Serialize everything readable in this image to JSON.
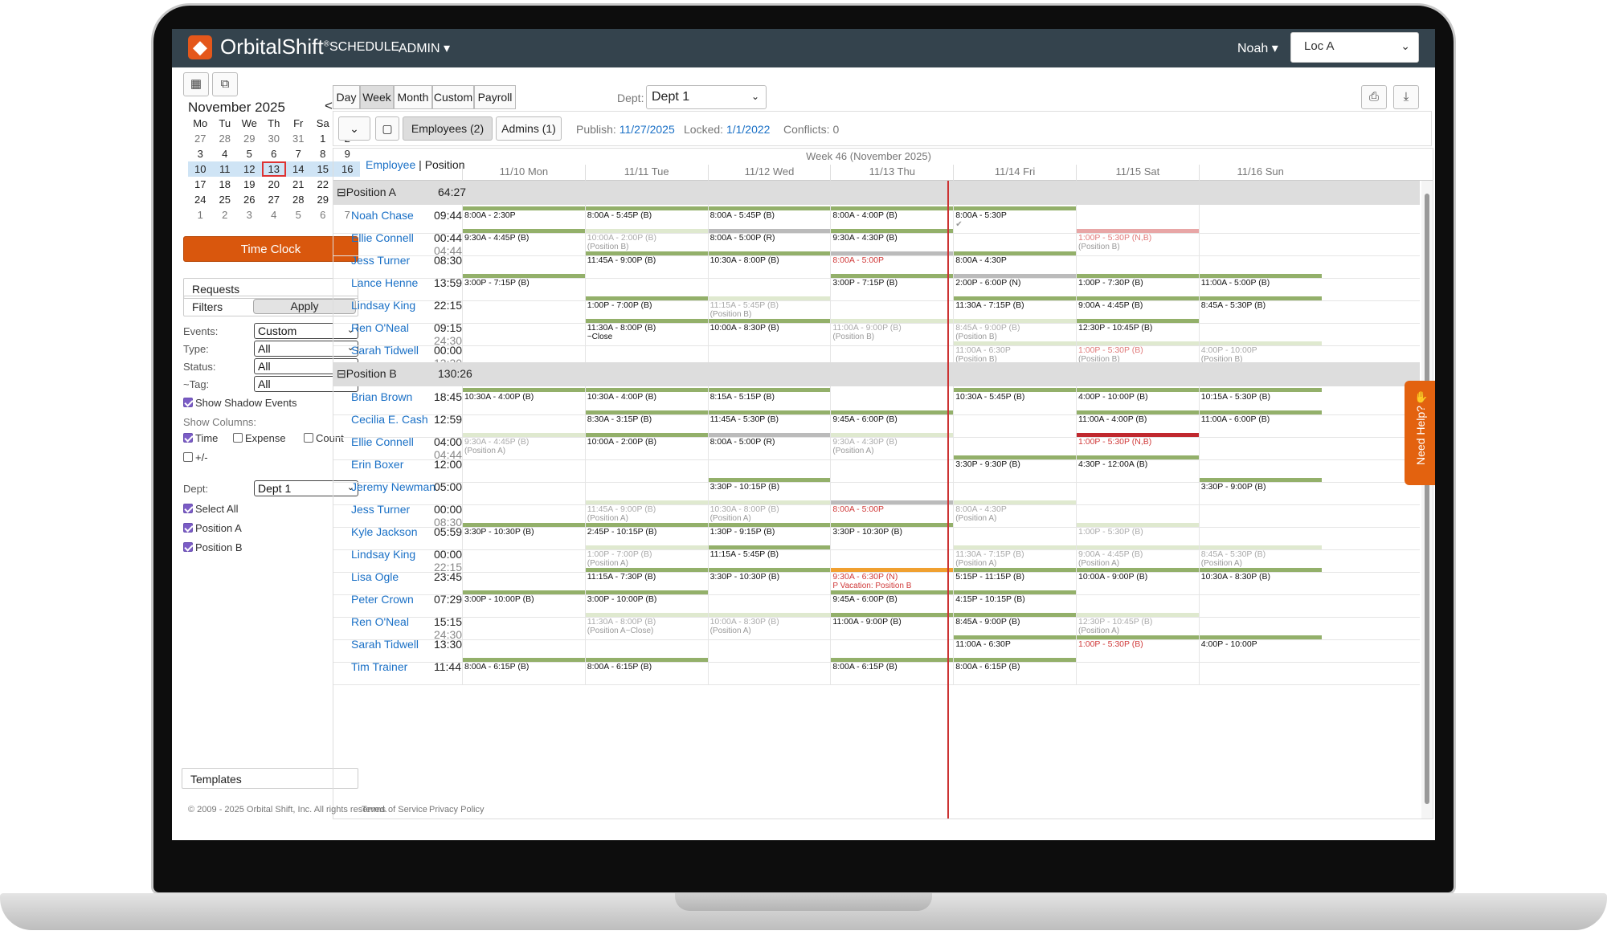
{
  "app": {
    "brand": "OrbitalShift",
    "brand_mark": "®"
  },
  "nav": {
    "schedule": "SCHEDULE",
    "admin": "ADMIN ▾",
    "user": "Noah ▾",
    "location": "Loc A"
  },
  "calendar": {
    "title": "November 2025",
    "prev": "<",
    "next": ">",
    "headers": [
      "Mo",
      "Tu",
      "We",
      "Th",
      "Fr",
      "Sa",
      "Su"
    ],
    "weeks": [
      [
        "27",
        "28",
        "29",
        "30",
        "31",
        "1",
        "2"
      ],
      [
        "3",
        "4",
        "5",
        "6",
        "7",
        "8",
        "9"
      ],
      [
        "10",
        "11",
        "12",
        "13",
        "14",
        "15",
        "16"
      ],
      [
        "17",
        "18",
        "19",
        "20",
        "21",
        "22",
        "23"
      ],
      [
        "24",
        "25",
        "26",
        "27",
        "28",
        "29",
        "30"
      ],
      [
        "1",
        "2",
        "3",
        "4",
        "5",
        "6",
        "7"
      ]
    ],
    "today": "13"
  },
  "sidebar": {
    "time_clock": "Time Clock",
    "requests": "Requests",
    "filters": "Filters",
    "apply": "Apply",
    "events_label": "Events:",
    "events_value": "Custom",
    "type_label": "Type:",
    "type_value": "All",
    "status_label": "Status:",
    "status_value": "All",
    "tag_label": "~Tag:",
    "tag_value": "All",
    "show_shadow": "Show Shadow Events",
    "show_columns": "Show Columns:",
    "col_time": "Time",
    "col_expense": "Expense",
    "col_count": "Count",
    "col_plusminus": "+/-",
    "dept_label": "Dept:",
    "dept_value": "Dept 1",
    "select_all": "Select All",
    "position_a": "Position A",
    "position_b": "Position B",
    "templates": "Templates"
  },
  "toolbar": {
    "views": [
      "Day",
      "Week",
      "Month",
      "Custom",
      "Payroll"
    ],
    "active_view": "Week",
    "dept_label": "Dept:",
    "dept_value": "Dept 1",
    "employees_pill": "Employees (2)",
    "admins_pill": "Admins (1)",
    "publish_label": "Publish:",
    "publish_value": "11/27/2025",
    "locked_label": "Locked:",
    "locked_value": "1/1/2022",
    "conflicts": "Conflicts: 0"
  },
  "schedule": {
    "week_title": "Week 46 (November 2025)",
    "employee_link": "Employee",
    "separator": "|",
    "position_link": "Position",
    "days": [
      "11/10 Mon",
      "11/11 Tue",
      "11/12 Wed",
      "11/13 Thu",
      "11/14 Fri",
      "11/15 Sat",
      "11/16 Sun"
    ],
    "groups": [
      {
        "name": "⊟Position A",
        "hours": "64:27",
        "rows": [
          {
            "name": "Noah Chase",
            "h1": "09:44",
            "h2": "",
            "cells": [
              {
                "t": "8:00A - 2:30P",
                "c": "#93b06a"
              },
              {
                "t": "8:00A - 5:45P (B)",
                "c": "#93b06a"
              },
              {
                "t": "8:00A - 5:45P (B)",
                "c": "#93b06a"
              },
              {
                "t": "8:00A - 4:00P (B)",
                "c": "#93b06a"
              },
              {
                "t": "8:00A - 5:30P",
                "sub": "✔",
                "c": "#93b06a"
              },
              null,
              null
            ]
          },
          {
            "name": "Ellie Connell",
            "h1": "00:44",
            "h2": "04:44",
            "cells": [
              {
                "t": "9:30A - 4:45P (B)",
                "c": "#93b06a"
              },
              {
                "t": "10:00A - 2:00P (B)",
                "sub": "(Position B)",
                "c": "#dfe9cf",
                "k": "faded"
              },
              {
                "t": "8:00A - 5:00P (R)",
                "c": "#bbb"
              },
              {
                "t": "9:30A - 4:30P (B)",
                "c": "#93b06a"
              },
              null,
              {
                "t": "1:00P - 5:30P (N,B)",
                "sub": "(Position B)",
                "c": "#e8a6a6",
                "k": "pink"
              },
              null
            ]
          },
          {
            "name": "Jess Turner",
            "h1": "08:30",
            "h2": "",
            "cells": [
              null,
              {
                "t": "11:45A - 9:00P (B)",
                "c": "#93b06a"
              },
              {
                "t": "10:30A - 8:00P (B)",
                "c": "#93b06a"
              },
              {
                "t": "8:00A - 5:00P",
                "c": "#bbb",
                "k": "red"
              },
              {
                "t": "8:00A - 4:30P",
                "c": "#93b06a"
              },
              null,
              null
            ]
          },
          {
            "name": "Lance Henne",
            "h1": "13:59",
            "h2": "",
            "cells": [
              {
                "t": "3:00P - 7:15P (B)",
                "c": "#93b06a"
              },
              null,
              null,
              {
                "t": "3:00P - 7:15P (B)",
                "c": "#93b06a"
              },
              {
                "t": "2:00P - 6:00P (N)",
                "c": "#bbb"
              },
              {
                "t": "1:00P - 7:30P (B)",
                "c": "#93b06a"
              },
              {
                "t": "11:00A - 5:00P (B)",
                "c": "#93b06a"
              }
            ]
          },
          {
            "name": "Lindsay King",
            "h1": "22:15",
            "h2": "",
            "cells": [
              null,
              {
                "t": "1:00P - 7:00P (B)",
                "c": "#93b06a"
              },
              {
                "t": "11:15A - 5:45P (B)",
                "sub": "(Position B)",
                "c": "#dfe9cf",
                "k": "faded"
              },
              null,
              {
                "t": "11:30A - 7:15P (B)",
                "c": "#93b06a"
              },
              {
                "t": "9:00A - 4:45P (B)",
                "c": "#93b06a"
              },
              {
                "t": "8:45A - 5:30P (B)",
                "c": "#93b06a"
              }
            ]
          },
          {
            "name": "Ren O'Neal",
            "h1": "09:15",
            "h2": "24:30",
            "cells": [
              null,
              {
                "t": "11:30A - 8:00P (B)",
                "sub2": "~Close",
                "c": "#93b06a"
              },
              {
                "t": "10:00A - 8:30P (B)",
                "c": "#93b06a"
              },
              {
                "t": "11:00A - 9:00P (B)",
                "sub": "(Position B)",
                "c": "#dfe9cf",
                "k": "faded"
              },
              {
                "t": "8:45A - 9:00P (B)",
                "sub": "(Position B)",
                "c": "#dfe9cf",
                "k": "faded"
              },
              {
                "t": "12:30P - 10:45P (B)",
                "c": "#93b06a"
              },
              null
            ]
          },
          {
            "name": "Sarah Tidwell",
            "h1": "00:00",
            "h2": "13:30",
            "cells": [
              null,
              null,
              null,
              null,
              {
                "t": "11:00A - 6:30P",
                "sub": "(Position B)",
                "c": "#dfe9cf",
                "k": "faded"
              },
              {
                "t": "1:00P - 5:30P (B)",
                "sub": "(Position B)",
                "c": "#dfe9cf",
                "k": "pink"
              },
              {
                "t": "4:00P - 10:00P",
                "sub": "(Position B)",
                "c": "#dfe9cf",
                "k": "faded"
              }
            ]
          }
        ]
      },
      {
        "name": "⊟Position B",
        "hours": "130:26",
        "rows": [
          {
            "name": "Brian Brown",
            "h1": "18:45",
            "h2": "",
            "cells": [
              {
                "t": "10:30A - 4:00P (B)",
                "c": "#93b06a"
              },
              {
                "t": "10:30A - 4:00P (B)",
                "c": "#93b06a"
              },
              {
                "t": "8:15A - 5:15P (B)",
                "c": "#93b06a"
              },
              null,
              {
                "t": "10:30A - 5:45P (B)",
                "c": "#93b06a"
              },
              {
                "t": "4:00P - 10:00P (B)",
                "c": "#93b06a"
              },
              {
                "t": "10:15A - 5:30P (B)",
                "c": "#93b06a"
              }
            ]
          },
          {
            "name": "Cecilia E. Cash",
            "h1": "12:59",
            "h2": "",
            "cells": [
              null,
              {
                "t": "8:30A - 3:15P (B)",
                "c": "#93b06a"
              },
              {
                "t": "11:45A - 5:30P (B)",
                "c": "#93b06a"
              },
              {
                "t": "9:45A - 6:00P (B)",
                "c": "#93b06a"
              },
              null,
              {
                "t": "11:00A - 4:00P (B)",
                "c": "#93b06a"
              },
              {
                "t": "11:00A - 6:00P (B)",
                "c": "#93b06a"
              }
            ]
          },
          {
            "name": "Ellie Connell",
            "h1": "04:00",
            "h2": "04:44",
            "cells": [
              {
                "t": "9:30A - 4:45P (B)",
                "sub": "(Position A)",
                "c": "#dfe9cf",
                "k": "faded"
              },
              {
                "t": "10:00A - 2:00P (B)",
                "c": "#93b06a"
              },
              {
                "t": "8:00A - 5:00P (R)",
                "c": "#bbb"
              },
              {
                "t": "9:30A - 4:30P (B)",
                "sub": "(Position A)",
                "c": "#dfe9cf",
                "k": "faded"
              },
              null,
              {
                "t": "1:00P - 5:30P (N,B)",
                "c": "#c0282e",
                "k": "red"
              },
              null
            ]
          },
          {
            "name": "Erin Boxer",
            "h1": "12:00",
            "h2": "",
            "cells": [
              null,
              null,
              null,
              null,
              {
                "t": "3:30P - 9:30P (B)",
                "c": "#93b06a"
              },
              {
                "t": "4:30P - 12:00A (B)",
                "c": "#93b06a"
              },
              null
            ]
          },
          {
            "name": "Jeremy Newman",
            "h1": "05:00",
            "h2": "",
            "cells": [
              null,
              null,
              {
                "t": "3:30P - 10:15P (B)",
                "c": "#93b06a"
              },
              null,
              null,
              null,
              {
                "t": "3:30P - 9:00P (B)",
                "c": "#93b06a"
              }
            ]
          },
          {
            "name": "Jess Turner",
            "h1": "00:00",
            "h2": "08:30",
            "cells": [
              null,
              {
                "t": "11:45A - 9:00P (B)",
                "sub": "(Position A)",
                "c": "#dfe9cf",
                "k": "faded"
              },
              {
                "t": "10:30A - 8:00P (B)",
                "sub": "(Position A)",
                "c": "#dfe9cf",
                "k": "faded"
              },
              {
                "t": "8:00A - 5:00P",
                "c": "#bbb",
                "k": "red"
              },
              {
                "t": "8:00A - 4:30P",
                "sub": "(Position A)",
                "c": "#dfe9cf",
                "k": "faded"
              },
              null,
              null
            ]
          },
          {
            "name": "Kyle Jackson",
            "h1": "05:59",
            "h2": "",
            "cells": [
              {
                "t": "3:30P - 10:30P (B)",
                "c": "#93b06a"
              },
              {
                "t": "2:45P - 10:15P (B)",
                "c": "#93b06a"
              },
              {
                "t": "1:30P - 9:15P (B)",
                "c": "#93b06a"
              },
              {
                "t": "3:30P - 10:30P (B)",
                "c": "#93b06a"
              },
              null,
              {
                "t": "1:00P - 5:30P (B)",
                "c": "#dfe9cf",
                "k": "faded"
              },
              null
            ]
          },
          {
            "name": "Lindsay King",
            "h1": "00:00",
            "h2": "22:15",
            "cells": [
              null,
              {
                "t": "1:00P - 7:00P (B)",
                "sub": "(Position A)",
                "c": "#dfe9cf",
                "k": "faded"
              },
              {
                "t": "11:15A - 5:45P (B)",
                "c": "#93b06a"
              },
              null,
              {
                "t": "11:30A - 7:15P (B)",
                "sub": "(Position A)",
                "c": "#dfe9cf",
                "k": "faded"
              },
              {
                "t": "9:00A - 4:45P (B)",
                "sub": "(Position A)",
                "c": "#dfe9cf",
                "k": "faded"
              },
              {
                "t": "8:45A - 5:30P (B)",
                "sub": "(Position A)",
                "c": "#dfe9cf",
                "k": "faded"
              }
            ]
          },
          {
            "name": "Lisa Ogle",
            "h1": "23:45",
            "h2": "",
            "cells": [
              null,
              {
                "t": "11:15A - 7:30P (B)",
                "c": "#93b06a"
              },
              {
                "t": "3:30P - 10:30P (B)",
                "c": "#93b06a"
              },
              {
                "t": "9:30A - 6:30P (N)",
                "sub2": "P Vacation: Position B",
                "c": "#f0a030",
                "k": "red"
              },
              {
                "t": "5:15P - 11:15P (B)",
                "c": "#93b06a"
              },
              {
                "t": "10:00A - 9:00P (B)",
                "c": "#93b06a"
              },
              {
                "t": "10:30A - 8:30P (B)",
                "c": "#93b06a"
              }
            ]
          },
          {
            "name": "Peter Crown",
            "h1": "07:29",
            "h2": "",
            "cells": [
              {
                "t": "3:00P - 10:00P (B)",
                "c": "#93b06a"
              },
              {
                "t": "3:00P - 10:00P (B)",
                "c": "#93b06a"
              },
              null,
              {
                "t": "9:45A - 6:00P (B)",
                "c": "#93b06a"
              },
              {
                "t": "4:15P - 10:15P (B)",
                "c": "#93b06a"
              },
              null,
              null
            ]
          },
          {
            "name": "Ren O'Neal",
            "h1": "15:15",
            "h2": "24:30",
            "cells": [
              null,
              {
                "t": "11:30A - 8:00P (B)",
                "sub": "(Position A~Close)",
                "c": "#dfe9cf",
                "k": "faded"
              },
              {
                "t": "10:00A - 8:30P (B)",
                "sub": "(Position A)",
                "c": "#dfe9cf",
                "k": "faded"
              },
              {
                "t": "11:00A - 9:00P (B)",
                "c": "#93b06a"
              },
              {
                "t": "8:45A - 9:00P (B)",
                "c": "#93b06a"
              },
              {
                "t": "12:30P - 10:45P (B)",
                "sub": "(Position A)",
                "c": "#dfe9cf",
                "k": "faded"
              },
              null
            ]
          },
          {
            "name": "Sarah Tidwell",
            "h1": "13:30",
            "h2": "",
            "cells": [
              null,
              null,
              null,
              null,
              {
                "t": "11:00A - 6:30P",
                "c": "#93b06a"
              },
              {
                "t": "1:00P - 5:30P (B)",
                "c": "#93b06a",
                "k": "red"
              },
              {
                "t": "4:00P - 10:00P",
                "c": "#93b06a"
              }
            ]
          },
          {
            "name": "Tim Trainer",
            "h1": "11:44",
            "h2": "",
            "cells": [
              {
                "t": "8:00A - 6:15P (B)",
                "c": "#93b06a"
              },
              {
                "t": "8:00A - 6:15P (B)",
                "c": "#93b06a"
              },
              null,
              {
                "t": "8:00A - 6:15P (B)",
                "c": "#93b06a"
              },
              {
                "t": "8:00A - 6:15P (B)",
                "c": "#93b06a"
              },
              null,
              null
            ]
          }
        ]
      }
    ]
  },
  "footer": {
    "copyright": "© 2009 - 2025 Orbital Shift, Inc. All rights reserved.",
    "terms": "Terms of Service",
    "privacy": "Privacy Policy"
  },
  "help": {
    "label": "Need Help?"
  }
}
